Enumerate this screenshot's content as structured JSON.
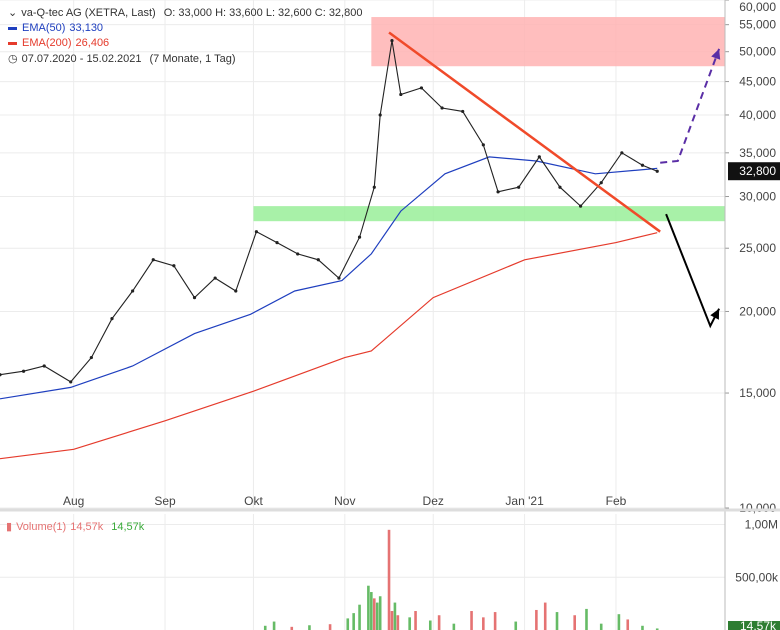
{
  "legend": {
    "title": "va-Q-tec AG (XETRA, Last)",
    "ohlc": "O: 33,000  H: 33,600  L: 32,600  C: 32,800",
    "ema50_label": "EMA(50)",
    "ema50_value": "33,130",
    "ema200_label": "EMA(200)",
    "ema200_value": "26,406",
    "period": "07.07.2020 - 15.02.2021",
    "period_note": "(7 Monate, 1 Tag)",
    "volume_label": "Volume(1)",
    "volume_value1": "14,57k",
    "volume_value2": "14,57k"
  },
  "colors": {
    "ema50": "#1f3fbf",
    "ema200": "#e53b2c",
    "volume_up": "#66bb66",
    "volume_down": "#e57373",
    "resistance_zone": "#ffb3b3",
    "support_zone": "#99ee99",
    "trendline": "#f04a2a",
    "bull_arrow": "#5a2ea6",
    "bear_arrow": "#000000",
    "price_tag": "#111111"
  },
  "chart_data": {
    "type": "line",
    "y_scale": "log",
    "ylim": [
      10,
      60
    ],
    "price_ticks": [
      {
        "value": 60,
        "label": "60,000"
      },
      {
        "value": 55,
        "label": "55,000"
      },
      {
        "value": 50,
        "label": "50,000"
      },
      {
        "value": 45,
        "label": "45,000"
      },
      {
        "value": 40,
        "label": "40,000"
      },
      {
        "value": 35,
        "label": "35,000"
      },
      {
        "value": 30,
        "label": "30,000"
      },
      {
        "value": 25,
        "label": "25,000"
      },
      {
        "value": 20,
        "label": "20,000"
      },
      {
        "value": 15,
        "label": "15,000"
      },
      {
        "value": 10,
        "label": "10,000"
      }
    ],
    "x_range": [
      "2020-07-07",
      "2021-03-10"
    ],
    "month_ticks": [
      {
        "date": "2020-08-01",
        "label": "Aug"
      },
      {
        "date": "2020-09-01",
        "label": "Sep"
      },
      {
        "date": "2020-10-01",
        "label": "Okt"
      },
      {
        "date": "2020-11-01",
        "label": "Nov"
      },
      {
        "date": "2020-12-01",
        "label": "Dez"
      },
      {
        "date": "2021-01-01",
        "label": "Jan '21"
      },
      {
        "date": "2021-02-01",
        "label": "Feb"
      }
    ],
    "last_price": 32.8,
    "last_price_label": "32,800",
    "price_series": [
      {
        "date": "2020-07-07",
        "value": 16.0
      },
      {
        "date": "2020-07-15",
        "value": 16.2
      },
      {
        "date": "2020-07-22",
        "value": 16.5
      },
      {
        "date": "2020-07-31",
        "value": 15.6
      },
      {
        "date": "2020-08-07",
        "value": 17.0
      },
      {
        "date": "2020-08-14",
        "value": 19.5
      },
      {
        "date": "2020-08-21",
        "value": 21.5
      },
      {
        "date": "2020-08-28",
        "value": 24.0
      },
      {
        "date": "2020-09-04",
        "value": 23.5
      },
      {
        "date": "2020-09-11",
        "value": 21.0
      },
      {
        "date": "2020-09-18",
        "value": 22.5
      },
      {
        "date": "2020-09-25",
        "value": 21.5
      },
      {
        "date": "2020-10-02",
        "value": 26.5
      },
      {
        "date": "2020-10-09",
        "value": 25.5
      },
      {
        "date": "2020-10-16",
        "value": 24.5
      },
      {
        "date": "2020-10-23",
        "value": 24.0
      },
      {
        "date": "2020-10-30",
        "value": 22.5
      },
      {
        "date": "2020-11-06",
        "value": 26.0
      },
      {
        "date": "2020-11-11",
        "value": 31.0
      },
      {
        "date": "2020-11-13",
        "value": 40.0
      },
      {
        "date": "2020-11-17",
        "value": 52.0
      },
      {
        "date": "2020-11-20",
        "value": 43.0
      },
      {
        "date": "2020-11-27",
        "value": 44.0
      },
      {
        "date": "2020-12-04",
        "value": 41.0
      },
      {
        "date": "2020-12-11",
        "value": 40.5
      },
      {
        "date": "2020-12-18",
        "value": 36.0
      },
      {
        "date": "2020-12-23",
        "value": 30.5
      },
      {
        "date": "2020-12-30",
        "value": 31.0
      },
      {
        "date": "2021-01-06",
        "value": 34.5
      },
      {
        "date": "2021-01-13",
        "value": 31.0
      },
      {
        "date": "2021-01-20",
        "value": 29.0
      },
      {
        "date": "2021-01-27",
        "value": 31.5
      },
      {
        "date": "2021-02-03",
        "value": 35.0
      },
      {
        "date": "2021-02-10",
        "value": 33.5
      },
      {
        "date": "2021-02-15",
        "value": 32.8
      }
    ],
    "ema50": [
      {
        "date": "2020-07-07",
        "value": 14.7
      },
      {
        "date": "2020-07-31",
        "value": 15.3
      },
      {
        "date": "2020-08-21",
        "value": 16.5
      },
      {
        "date": "2020-09-11",
        "value": 18.5
      },
      {
        "date": "2020-09-30",
        "value": 19.8
      },
      {
        "date": "2020-10-15",
        "value": 21.5
      },
      {
        "date": "2020-10-31",
        "value": 22.3
      },
      {
        "date": "2020-11-10",
        "value": 24.5
      },
      {
        "date": "2020-11-20",
        "value": 28.5
      },
      {
        "date": "2020-12-05",
        "value": 32.5
      },
      {
        "date": "2020-12-20",
        "value": 34.5
      },
      {
        "date": "2021-01-05",
        "value": 34.0
      },
      {
        "date": "2021-01-25",
        "value": 32.5
      },
      {
        "date": "2021-02-15",
        "value": 33.13
      }
    ],
    "ema200": [
      {
        "date": "2020-07-07",
        "value": 11.9
      },
      {
        "date": "2020-08-01",
        "value": 12.3
      },
      {
        "date": "2020-09-01",
        "value": 13.6
      },
      {
        "date": "2020-10-01",
        "value": 15.1
      },
      {
        "date": "2020-11-01",
        "value": 17.0
      },
      {
        "date": "2020-11-10",
        "value": 17.4
      },
      {
        "date": "2020-12-01",
        "value": 21.0
      },
      {
        "date": "2021-01-01",
        "value": 24.0
      },
      {
        "date": "2021-02-01",
        "value": 25.5
      },
      {
        "date": "2021-02-15",
        "value": 26.406
      }
    ],
    "volume_ticks": [
      {
        "value": 1000,
        "label": "1,00M"
      },
      {
        "value": 500,
        "label": "500,00k"
      }
    ],
    "last_volume_label": "14,57k",
    "volume_ylim": [
      0,
      1100
    ],
    "volume": [
      {
        "date": "2020-10-05",
        "value": 40,
        "up": true
      },
      {
        "date": "2020-10-08",
        "value": 80,
        "up": true
      },
      {
        "date": "2020-10-14",
        "value": 30,
        "up": false
      },
      {
        "date": "2020-10-20",
        "value": 45,
        "up": true
      },
      {
        "date": "2020-10-27",
        "value": 55,
        "up": false
      },
      {
        "date": "2020-11-02",
        "value": 110,
        "up": true
      },
      {
        "date": "2020-11-04",
        "value": 160,
        "up": true
      },
      {
        "date": "2020-11-06",
        "value": 240,
        "up": true
      },
      {
        "date": "2020-11-09",
        "value": 420,
        "up": true
      },
      {
        "date": "2020-11-10",
        "value": 360,
        "up": true
      },
      {
        "date": "2020-11-11",
        "value": 300,
        "up": false
      },
      {
        "date": "2020-11-12",
        "value": 260,
        "up": true
      },
      {
        "date": "2020-11-13",
        "value": 320,
        "up": true
      },
      {
        "date": "2020-11-16",
        "value": 950,
        "up": false
      },
      {
        "date": "2020-11-17",
        "value": 180,
        "up": false
      },
      {
        "date": "2020-11-18",
        "value": 260,
        "up": true
      },
      {
        "date": "2020-11-19",
        "value": 140,
        "up": false
      },
      {
        "date": "2020-11-23",
        "value": 120,
        "up": true
      },
      {
        "date": "2020-11-25",
        "value": 180,
        "up": false
      },
      {
        "date": "2020-11-30",
        "value": 90,
        "up": true
      },
      {
        "date": "2020-12-03",
        "value": 140,
        "up": false
      },
      {
        "date": "2020-12-08",
        "value": 60,
        "up": true
      },
      {
        "date": "2020-12-14",
        "value": 180,
        "up": false
      },
      {
        "date": "2020-12-18",
        "value": 120,
        "up": false
      },
      {
        "date": "2020-12-22",
        "value": 170,
        "up": false
      },
      {
        "date": "2020-12-29",
        "value": 80,
        "up": true
      },
      {
        "date": "2021-01-05",
        "value": 190,
        "up": false
      },
      {
        "date": "2021-01-08",
        "value": 260,
        "up": false
      },
      {
        "date": "2021-01-12",
        "value": 170,
        "up": true
      },
      {
        "date": "2021-01-18",
        "value": 140,
        "up": false
      },
      {
        "date": "2021-01-22",
        "value": 200,
        "up": true
      },
      {
        "date": "2021-01-27",
        "value": 60,
        "up": true
      },
      {
        "date": "2021-02-02",
        "value": 150,
        "up": true
      },
      {
        "date": "2021-02-05",
        "value": 100,
        "up": false
      },
      {
        "date": "2021-02-10",
        "value": 40,
        "up": true
      },
      {
        "date": "2021-02-15",
        "value": 14.57,
        "up": true
      }
    ],
    "annotations": {
      "resistance_zone": {
        "from_date": "2020-11-10",
        "to_date": "2021-03-10",
        "low": 47.5,
        "high": 56.5
      },
      "support_zone": {
        "from_date": "2020-10-01",
        "to_date": "2021-03-10",
        "low": 27.5,
        "high": 29.0
      },
      "trendline": {
        "start": {
          "date": "2020-11-16",
          "value": 53.5
        },
        "end": {
          "date": "2021-02-16",
          "value": 26.5
        }
      },
      "bull_scenario": [
        {
          "date": "2021-02-16",
          "value": 33.8
        },
        {
          "date": "2021-02-22",
          "value": 34.0
        },
        {
          "date": "2021-03-08",
          "value": 50.5
        }
      ],
      "bear_scenario": [
        {
          "date": "2021-02-18",
          "value": 28.2
        },
        {
          "date": "2021-03-05",
          "value": 19.0
        },
        {
          "date": "2021-03-08",
          "value": 20.2
        }
      ]
    }
  }
}
